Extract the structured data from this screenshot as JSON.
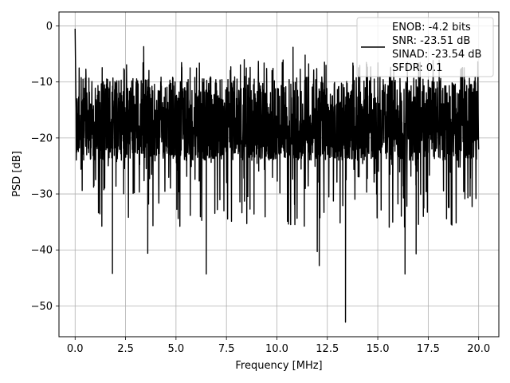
{
  "chart_data": {
    "type": "line",
    "xlabel": "Frequency [MHz]",
    "ylabel": "PSD [dB]",
    "xlim": [
      -0.8,
      21.0
    ],
    "ylim": [
      -55.5,
      2.5
    ],
    "x_ticks": [
      0.0,
      2.5,
      5.0,
      7.5,
      10.0,
      12.5,
      15.0,
      17.5,
      20.0
    ],
    "x_tick_labels": [
      "0.0",
      "2.5",
      "5.0",
      "7.5",
      "10.0",
      "12.5",
      "15.0",
      "17.5",
      "20.0"
    ],
    "y_ticks": [
      0,
      -10,
      -20,
      -30,
      -40,
      -50
    ],
    "y_tick_labels": [
      "0",
      "−10",
      "−20",
      "−30",
      "−40",
      "−50"
    ],
    "grid": true,
    "legend_position": "top-right",
    "legend_lines": [
      "ENOB: -4.2 bits",
      "SNR: -23.51 dB",
      "SINAD: -23.54 dB",
      "SFDR: 0.1"
    ],
    "series": [
      {
        "color": "#000000",
        "x_range": [
          0.0,
          20.0
        ],
        "peak": {
          "x": 0.0,
          "y": -0.5
        },
        "typical_floor_upper": -9,
        "typical_floor_lower": -24,
        "notable_dips": [
          {
            "x": 1.85,
            "y": -44.2
          },
          {
            "x": 3.6,
            "y": -40.6
          },
          {
            "x": 6.5,
            "y": -44.3
          },
          {
            "x": 12.0,
            "y": -40.3
          },
          {
            "x": 12.1,
            "y": -42.8
          },
          {
            "x": 13.4,
            "y": -52.9
          },
          {
            "x": 16.35,
            "y": -44.3
          },
          {
            "x": 16.9,
            "y": -40.7
          }
        ],
        "notable_peaks": [
          {
            "x": 3.4,
            "y": -3.7
          },
          {
            "x": 10.8,
            "y": -3.8
          },
          {
            "x": 11.4,
            "y": -5.2
          }
        ]
      }
    ]
  }
}
